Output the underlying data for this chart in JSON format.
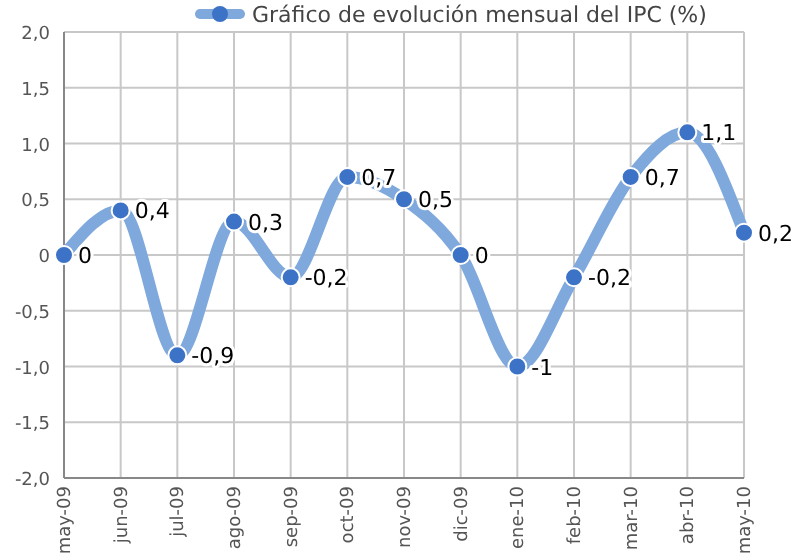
{
  "chart_data": {
    "type": "line",
    "categories": [
      "may-09",
      "jun-09",
      "jul-09",
      "ago-09",
      "sep-09",
      "oct-09",
      "nov-09",
      "dic-09",
      "ene-10",
      "feb-10",
      "mar-10",
      "abr-10",
      "may-10"
    ],
    "series": [
      {
        "name": "Gráfico de evolución mensual del IPC (%)",
        "color": "#7fa8dc",
        "values": [
          0,
          0.4,
          -0.9,
          0.3,
          -0.2,
          0.7,
          0.5,
          0,
          -1,
          -0.2,
          0.7,
          1.1,
          0.2
        ],
        "value_labels": [
          "0",
          "0,4",
          "-0,9",
          "0,3",
          "-0,2",
          "0,7",
          "0,5",
          "0",
          "-1",
          "-0,2",
          "0,7",
          "1,1",
          "0,2"
        ]
      }
    ],
    "ylim": [
      -2,
      2
    ],
    "yticks": [
      {
        "value": -2,
        "label": "-2,0"
      },
      {
        "value": -1.5,
        "label": "-1,5"
      },
      {
        "value": -1,
        "label": "-1,0"
      },
      {
        "value": -0.5,
        "label": "-0,5"
      },
      {
        "value": 0,
        "label": "0"
      },
      {
        "value": 0.5,
        "label": "0,5"
      },
      {
        "value": 1,
        "label": "1,0"
      },
      {
        "value": 1.5,
        "label": "1,5"
      },
      {
        "value": 2,
        "label": "2,0"
      }
    ],
    "grid": true,
    "legend": "top",
    "marker": "circle",
    "line_style": "solid"
  }
}
